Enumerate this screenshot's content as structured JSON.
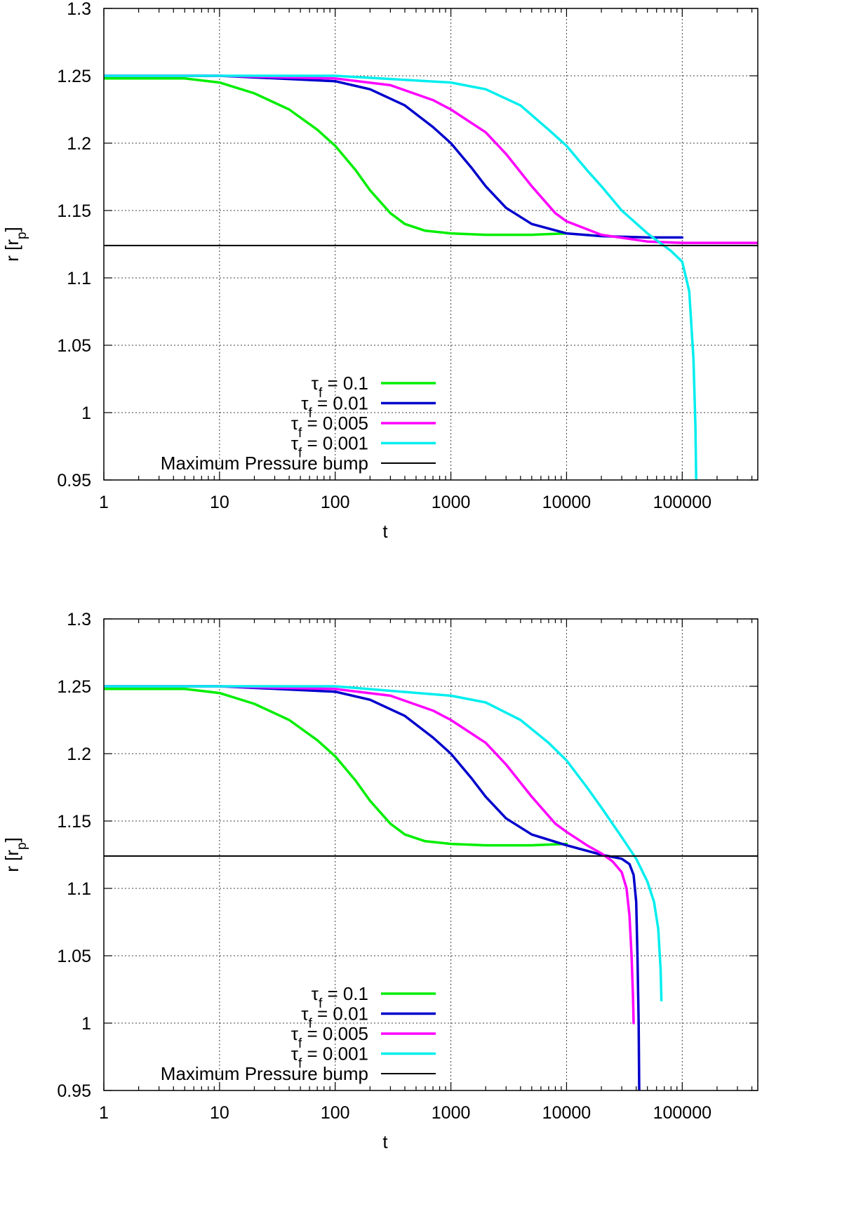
{
  "chart_data": [
    {
      "type": "line",
      "id": "top",
      "title": "",
      "xlabel": "t",
      "ylabel": "r [r",
      "ylabel_sub": "p",
      "ylabel_close": "]",
      "xscale": "log",
      "xlim": [
        1,
        450000
      ],
      "ylim": [
        0.95,
        1.3
      ],
      "xticks": [
        1,
        10,
        100,
        1000,
        10000,
        100000
      ],
      "xtick_labels": [
        "1",
        "10",
        "100",
        "1000",
        "10000",
        "100000"
      ],
      "yticks": [
        0.95,
        1.0,
        1.05,
        1.1,
        1.15,
        1.2,
        1.25,
        1.3
      ],
      "ytick_labels": [
        "0.95",
        "1",
        "1.05",
        "1.1",
        "1.15",
        "1.2",
        "1.25",
        "1.3"
      ],
      "grid": true,
      "legend_position": "bottom-center",
      "series": [
        {
          "name": "τ_f = 0.1",
          "sym": "τ",
          "sub": "f",
          "val": " = 0.1",
          "color": "#00ee00",
          "x": [
            1,
            5,
            10,
            20,
            40,
            70,
            100,
            150,
            200,
            300,
            400,
            600,
            1000,
            2000,
            5000,
            10000
          ],
          "y": [
            1.248,
            1.248,
            1.245,
            1.237,
            1.225,
            1.21,
            1.198,
            1.18,
            1.165,
            1.148,
            1.14,
            1.135,
            1.133,
            1.132,
            1.132,
            1.133
          ]
        },
        {
          "name": "τ_f = 0.01",
          "sym": "τ",
          "sub": "f",
          "val": " = 0.01",
          "color": "#0000cc",
          "x": [
            1,
            10,
            100,
            200,
            400,
            700,
            1000,
            1500,
            2000,
            3000,
            5000,
            10000,
            20000,
            50000,
            100000
          ],
          "y": [
            1.25,
            1.25,
            1.246,
            1.24,
            1.228,
            1.212,
            1.2,
            1.182,
            1.168,
            1.152,
            1.14,
            1.133,
            1.131,
            1.13,
            1.13
          ]
        },
        {
          "name": "τ_f = 0.005",
          "sym": "τ",
          "sub": "f",
          "val": " = 0.005",
          "color": "#ff00ff",
          "x": [
            1,
            10,
            100,
            300,
            700,
            1000,
            2000,
            3000,
            5000,
            8000,
            10000,
            20000,
            50000,
            100000,
            450000
          ],
          "y": [
            1.25,
            1.25,
            1.248,
            1.243,
            1.232,
            1.225,
            1.208,
            1.192,
            1.168,
            1.148,
            1.142,
            1.132,
            1.127,
            1.126,
            1.126
          ]
        },
        {
          "name": "τ_f = 0.001",
          "sym": "τ",
          "sub": "f",
          "val": " = 0.001",
          "color": "#00eeee",
          "x": [
            1,
            10,
            100,
            1000,
            2000,
            4000,
            7000,
            10000,
            15000,
            20000,
            30000,
            50000,
            80000,
            100000,
            115000,
            125000,
            130000,
            132000
          ],
          "y": [
            1.25,
            1.25,
            1.25,
            1.245,
            1.24,
            1.228,
            1.21,
            1.198,
            1.18,
            1.168,
            1.15,
            1.133,
            1.12,
            1.112,
            1.09,
            1.04,
            0.99,
            0.95
          ]
        },
        {
          "name": "Maximum Pressure bump",
          "sym": "",
          "sub": "",
          "val": "Maximum Pressure bump",
          "color": "#000000",
          "x": [
            1,
            450000
          ],
          "y": [
            1.124,
            1.124
          ]
        }
      ]
    },
    {
      "type": "line",
      "id": "bottom",
      "title": "",
      "xlabel": "t",
      "ylabel": "r [r",
      "ylabel_sub": "p",
      "ylabel_close": "]",
      "xscale": "log",
      "xlim": [
        1,
        450000
      ],
      "ylim": [
        0.95,
        1.3
      ],
      "xticks": [
        1,
        10,
        100,
        1000,
        10000,
        100000
      ],
      "xtick_labels": [
        "1",
        "10",
        "100",
        "1000",
        "10000",
        "100000"
      ],
      "yticks": [
        0.95,
        1.0,
        1.05,
        1.1,
        1.15,
        1.2,
        1.25,
        1.3
      ],
      "ytick_labels": [
        "0.95",
        "1",
        "1.05",
        "1.1",
        "1.15",
        "1.2",
        "1.25",
        "1.3"
      ],
      "grid": true,
      "legend_position": "bottom-center",
      "series": [
        {
          "name": "τ_f = 0.1",
          "sym": "τ",
          "sub": "f",
          "val": " = 0.1",
          "color": "#00ee00",
          "x": [
            1,
            5,
            10,
            20,
            40,
            70,
            100,
            150,
            200,
            300,
            400,
            600,
            1000,
            2000,
            5000,
            10000
          ],
          "y": [
            1.248,
            1.248,
            1.245,
            1.237,
            1.225,
            1.21,
            1.198,
            1.18,
            1.165,
            1.148,
            1.14,
            1.135,
            1.133,
            1.132,
            1.132,
            1.133
          ]
        },
        {
          "name": "τ_f = 0.01",
          "sym": "τ",
          "sub": "f",
          "val": " = 0.01",
          "color": "#0000cc",
          "x": [
            1,
            10,
            100,
            200,
            400,
            700,
            1000,
            1500,
            2000,
            3000,
            5000,
            10000,
            20000,
            30000,
            35000,
            38000,
            40000,
            41000,
            42000,
            42500
          ],
          "y": [
            1.25,
            1.25,
            1.246,
            1.24,
            1.228,
            1.212,
            1.2,
            1.182,
            1.168,
            1.152,
            1.14,
            1.132,
            1.125,
            1.122,
            1.118,
            1.11,
            1.09,
            1.05,
            1.0,
            0.95
          ]
        },
        {
          "name": "τ_f = 0.005",
          "sym": "τ",
          "sub": "f",
          "val": " = 0.005",
          "color": "#ff00ff",
          "x": [
            1,
            10,
            100,
            300,
            700,
            1000,
            2000,
            3000,
            5000,
            8000,
            10000,
            15000,
            20000,
            25000,
            30000,
            33000,
            35000,
            36500,
            37500,
            38000
          ],
          "y": [
            1.25,
            1.25,
            1.248,
            1.243,
            1.232,
            1.225,
            1.208,
            1.192,
            1.168,
            1.148,
            1.142,
            1.132,
            1.126,
            1.12,
            1.112,
            1.1,
            1.08,
            1.05,
            1.02,
            1.0
          ]
        },
        {
          "name": "τ_f = 0.001",
          "sym": "τ",
          "sub": "f",
          "val": " = 0.001",
          "color": "#00eeee",
          "x": [
            1,
            10,
            100,
            1000,
            2000,
            4000,
            7000,
            10000,
            15000,
            20000,
            30000,
            40000,
            50000,
            57000,
            62000,
            65000,
            66000
          ],
          "y": [
            1.25,
            1.25,
            1.25,
            1.243,
            1.238,
            1.225,
            1.208,
            1.195,
            1.175,
            1.16,
            1.138,
            1.122,
            1.105,
            1.09,
            1.07,
            1.04,
            1.017
          ]
        },
        {
          "name": "Maximum Pressure bump",
          "sym": "",
          "sub": "",
          "val": "Maximum Pressure bump",
          "color": "#000000",
          "x": [
            1,
            450000
          ],
          "y": [
            1.124,
            1.124
          ]
        }
      ]
    }
  ]
}
